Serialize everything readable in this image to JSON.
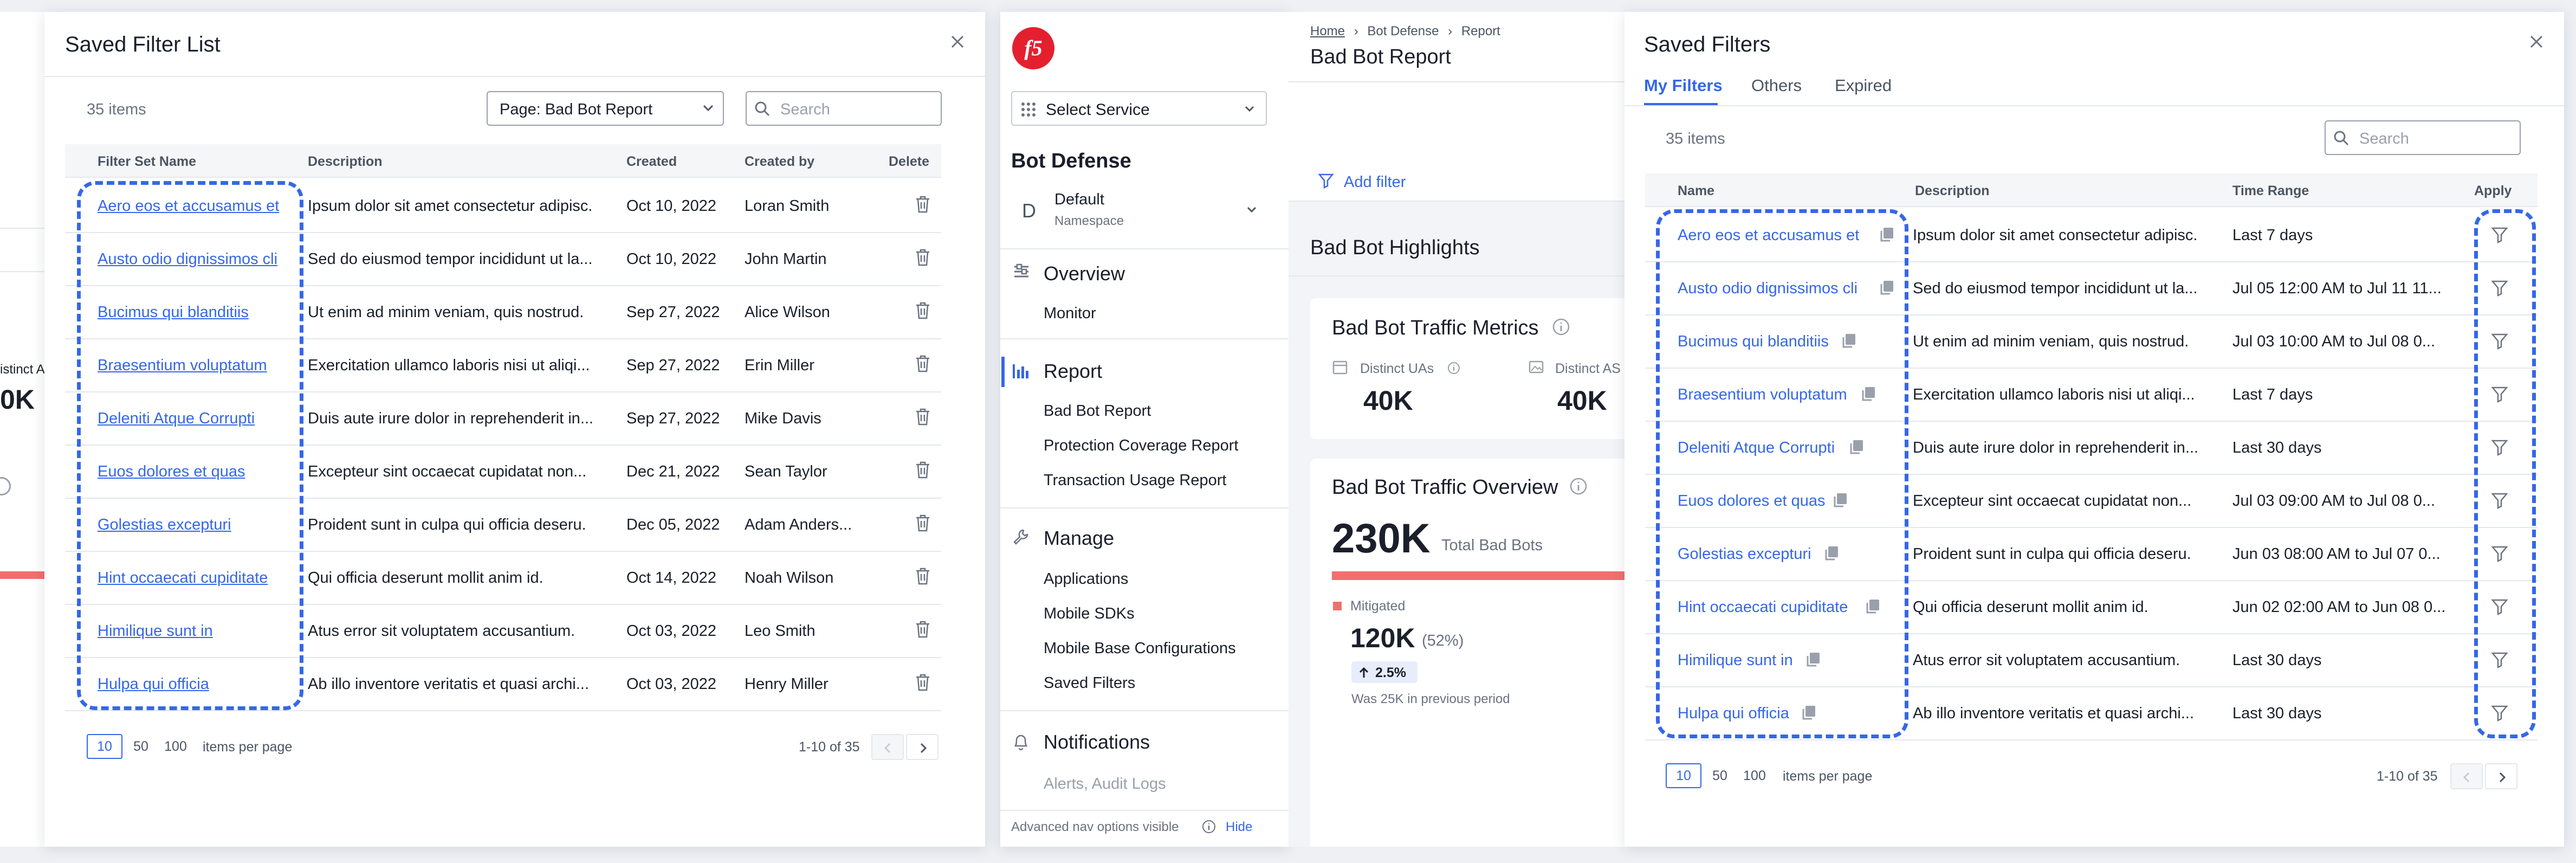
{
  "left_dialog": {
    "title": "Saved Filter List",
    "items_count": "35 items",
    "page_select": "Page: Bad Bot Report",
    "search_placeholder": "Search",
    "columns": {
      "name": "Filter Set Name",
      "description": "Description",
      "created": "Created",
      "created_by": "Created by",
      "delete": "Delete"
    },
    "rows": [
      {
        "name": "Aero eos et accusamus et",
        "description": "Ipsum dolor sit amet consectetur adipisc.",
        "created": "Oct 10, 2022",
        "created_by": "Loran Smith"
      },
      {
        "name": "Austo odio dignissimos cli",
        "description": "Sed do eiusmod tempor incididunt ut la...",
        "created": "Oct 10, 2022",
        "created_by": "John Martin"
      },
      {
        "name": "Bucimus qui blanditiis",
        "description": "Ut enim ad minim veniam, quis nostrud.",
        "created": "Sep 27, 2022",
        "created_by": "Alice Wilson"
      },
      {
        "name": "Braesentium voluptatum",
        "description": "Exercitation ullamco laboris nisi ut aliqi...",
        "created": "Sep 27, 2022",
        "created_by": "Erin Miller"
      },
      {
        "name": "Deleniti Atque Corrupti",
        "description": "Duis aute irure dolor in reprehenderit in...",
        "created": "Sep 27, 2022",
        "created_by": "Mike Davis"
      },
      {
        "name": "Euos dolores et quas",
        "description": "Excepteur sint occaecat cupidatat non...",
        "created": "Dec 21, 2022",
        "created_by": "Sean Taylor"
      },
      {
        "name": "Golestias excepturi",
        "description": "Proident sunt in culpa qui officia deseru.",
        "created": "Dec 05, 2022",
        "created_by": "Adam Anders..."
      },
      {
        "name": "Hint occaecati cupiditate",
        "description": "Qui officia deserunt mollit anim id.",
        "created": "Oct 14, 2022",
        "created_by": "Noah Wilson"
      },
      {
        "name": "Himilique sunt in",
        "description": "Atus error sit voluptatem accusantium.",
        "created": "Oct 03, 2022",
        "created_by": "Leo Smith"
      },
      {
        "name": "Hulpa qui officia",
        "description": "Ab illo inventore veritatis et quasi archi...",
        "created": "Oct 03, 2022",
        "created_by": "Henry Miller"
      }
    ],
    "page_sizes": [
      "10",
      "50",
      "100"
    ],
    "items_per_page": "items per page",
    "range": "1-10 of 35"
  },
  "bg_fragments": {
    "distinct": "istinct AS",
    "value": "0K"
  },
  "nav": {
    "select_service": "Select Service",
    "section_title": "Bot Defense",
    "namespace_letter": "D",
    "namespace_name": "Default",
    "namespace_label": "Namespace",
    "overview": "Overview",
    "monitor": "Monitor",
    "report": "Report",
    "report_items": [
      "Bad Bot Report",
      "Protection Coverage Report",
      "Transaction Usage Report"
    ],
    "manage": "Manage",
    "manage_items": [
      "Applications",
      "Mobile SDKs",
      "Mobile Base Configurations",
      "Saved Filters"
    ],
    "notifications": "Notifications",
    "notifications_sub": "Alerts, Audit Logs",
    "advanced": "Advanced nav options visible",
    "hide": "Hide"
  },
  "main": {
    "breadcrumb": [
      "Home",
      "Bot Defense",
      "Report"
    ],
    "title": "Bad Bot Report",
    "add_filter": "Add filter",
    "highlights": "Bad Bot Highlights",
    "metrics_title": "Bad Bot Traffic Metrics",
    "distinct_uas": "Distinct UAs",
    "distinct_uas_value": "40K",
    "distinct_as": "Distinct AS",
    "distinct_as_value": "40K",
    "overview_title": "Bad Bot Traffic Overview",
    "total_value": "230K",
    "total_label": "Total Bad Bots",
    "mitigated_label": "Mitigated",
    "mitigated_value": "120K",
    "mitigated_pct": "(52%)",
    "change": "2.5%",
    "previous": "Was 25K in previous period"
  },
  "right_dialog": {
    "title": "Saved Filters",
    "tabs": [
      "My Filters",
      "Others",
      "Expired"
    ],
    "items_count": "35 items",
    "search_placeholder": "Search",
    "columns": {
      "name": "Name",
      "description": "Description",
      "time_range": "Time Range",
      "apply": "Apply"
    },
    "rows": [
      {
        "name": "Aero eos et accusamus et",
        "description": "Ipsum dolor sit amet consectetur adipisc.",
        "time_range": "Last 7 days"
      },
      {
        "name": "Austo odio dignissimos cli",
        "description": "Sed do eiusmod tempor incididunt ut la...",
        "time_range": "Jul 05 12:00 AM to Jul 11 11..."
      },
      {
        "name": "Bucimus qui blanditiis",
        "description": "Ut enim ad minim veniam, quis nostrud.",
        "time_range": "Jul 03 10:00 AM to Jul 08 0..."
      },
      {
        "name": "Braesentium voluptatum",
        "description": "Exercitation ullamco laboris nisi ut aliqi...",
        "time_range": "Last 7 days"
      },
      {
        "name": "Deleniti Atque Corrupti",
        "description": "Duis aute irure dolor in reprehenderit in...",
        "time_range": "Last 30 days"
      },
      {
        "name": "Euos dolores et quas",
        "description": "Excepteur sint occaecat cupidatat non...",
        "time_range": "Jul 03 09:00 AM to Jul 08 0..."
      },
      {
        "name": "Golestias excepturi",
        "description": "Proident sunt in culpa qui officia deseru.",
        "time_range": "Jun 03 08:00 AM to Jul 07 0..."
      },
      {
        "name": "Hint occaecati cupiditate",
        "description": "Qui officia deserunt mollit anim id.",
        "time_range": "Jun 02 02:00 AM to Jun 08 0..."
      },
      {
        "name": "Himilique sunt in",
        "description": "Atus error sit voluptatem accusantium.",
        "time_range": "Last 30 days"
      },
      {
        "name": "Hulpa qui officia",
        "description": "Ab illo inventore veritatis et quasi archi...",
        "time_range": "Last 30 days"
      }
    ],
    "page_sizes": [
      "10",
      "50",
      "100"
    ],
    "items_per_page": "items per page",
    "range": "1-10 of 35"
  },
  "colors": {
    "accent": "#3567e8",
    "danger": "#f0706f",
    "background": "#eef0f4"
  }
}
